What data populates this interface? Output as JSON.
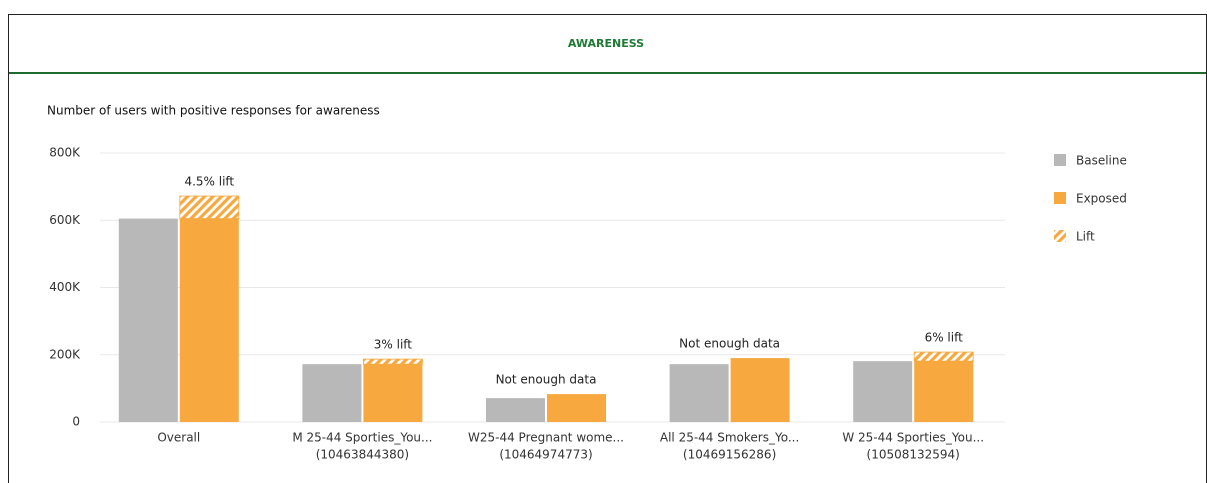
{
  "chart_data": {
    "type": "bar",
    "title": "AWARENESS",
    "subtitle": "Number of users with positive responses for awareness",
    "categories": [
      "Overall",
      "M 25-44 Sporties_You...",
      "W25-44 Pregnant wome...",
      "All 25-44 Smokers_Yo...",
      "W 25-44 Sporties_You..."
    ],
    "category_ids": [
      null,
      "(10463844380)",
      "(10464974773)",
      "(10469156286)",
      "(10508132594)"
    ],
    "annotations": [
      "4.5% lift",
      "3% lift",
      "Not enough data",
      "Not enough data",
      "6% lift"
    ],
    "series": [
      {
        "name": "Baseline",
        "color": "#b8b8b8",
        "values": [
          605000,
          172000,
          71000,
          172000,
          181000
        ]
      },
      {
        "name": "Exposed",
        "color": "#f7a83e",
        "values": [
          605000,
          172000,
          83000,
          190000,
          181000
        ]
      },
      {
        "name": "Lift",
        "color": "#f7a83e",
        "values": [
          67000,
          15000,
          null,
          null,
          27000
        ]
      }
    ],
    "ylim": [
      0,
      800000
    ],
    "yticks": [
      0,
      {
        "value": 200000,
        "label": "200K"
      },
      {
        "value": 400000,
        "label": "400K"
      },
      {
        "value": 600000,
        "label": "600K"
      },
      {
        "value": 800000,
        "label": "800K"
      }
    ],
    "grid": true,
    "legend": "right"
  }
}
